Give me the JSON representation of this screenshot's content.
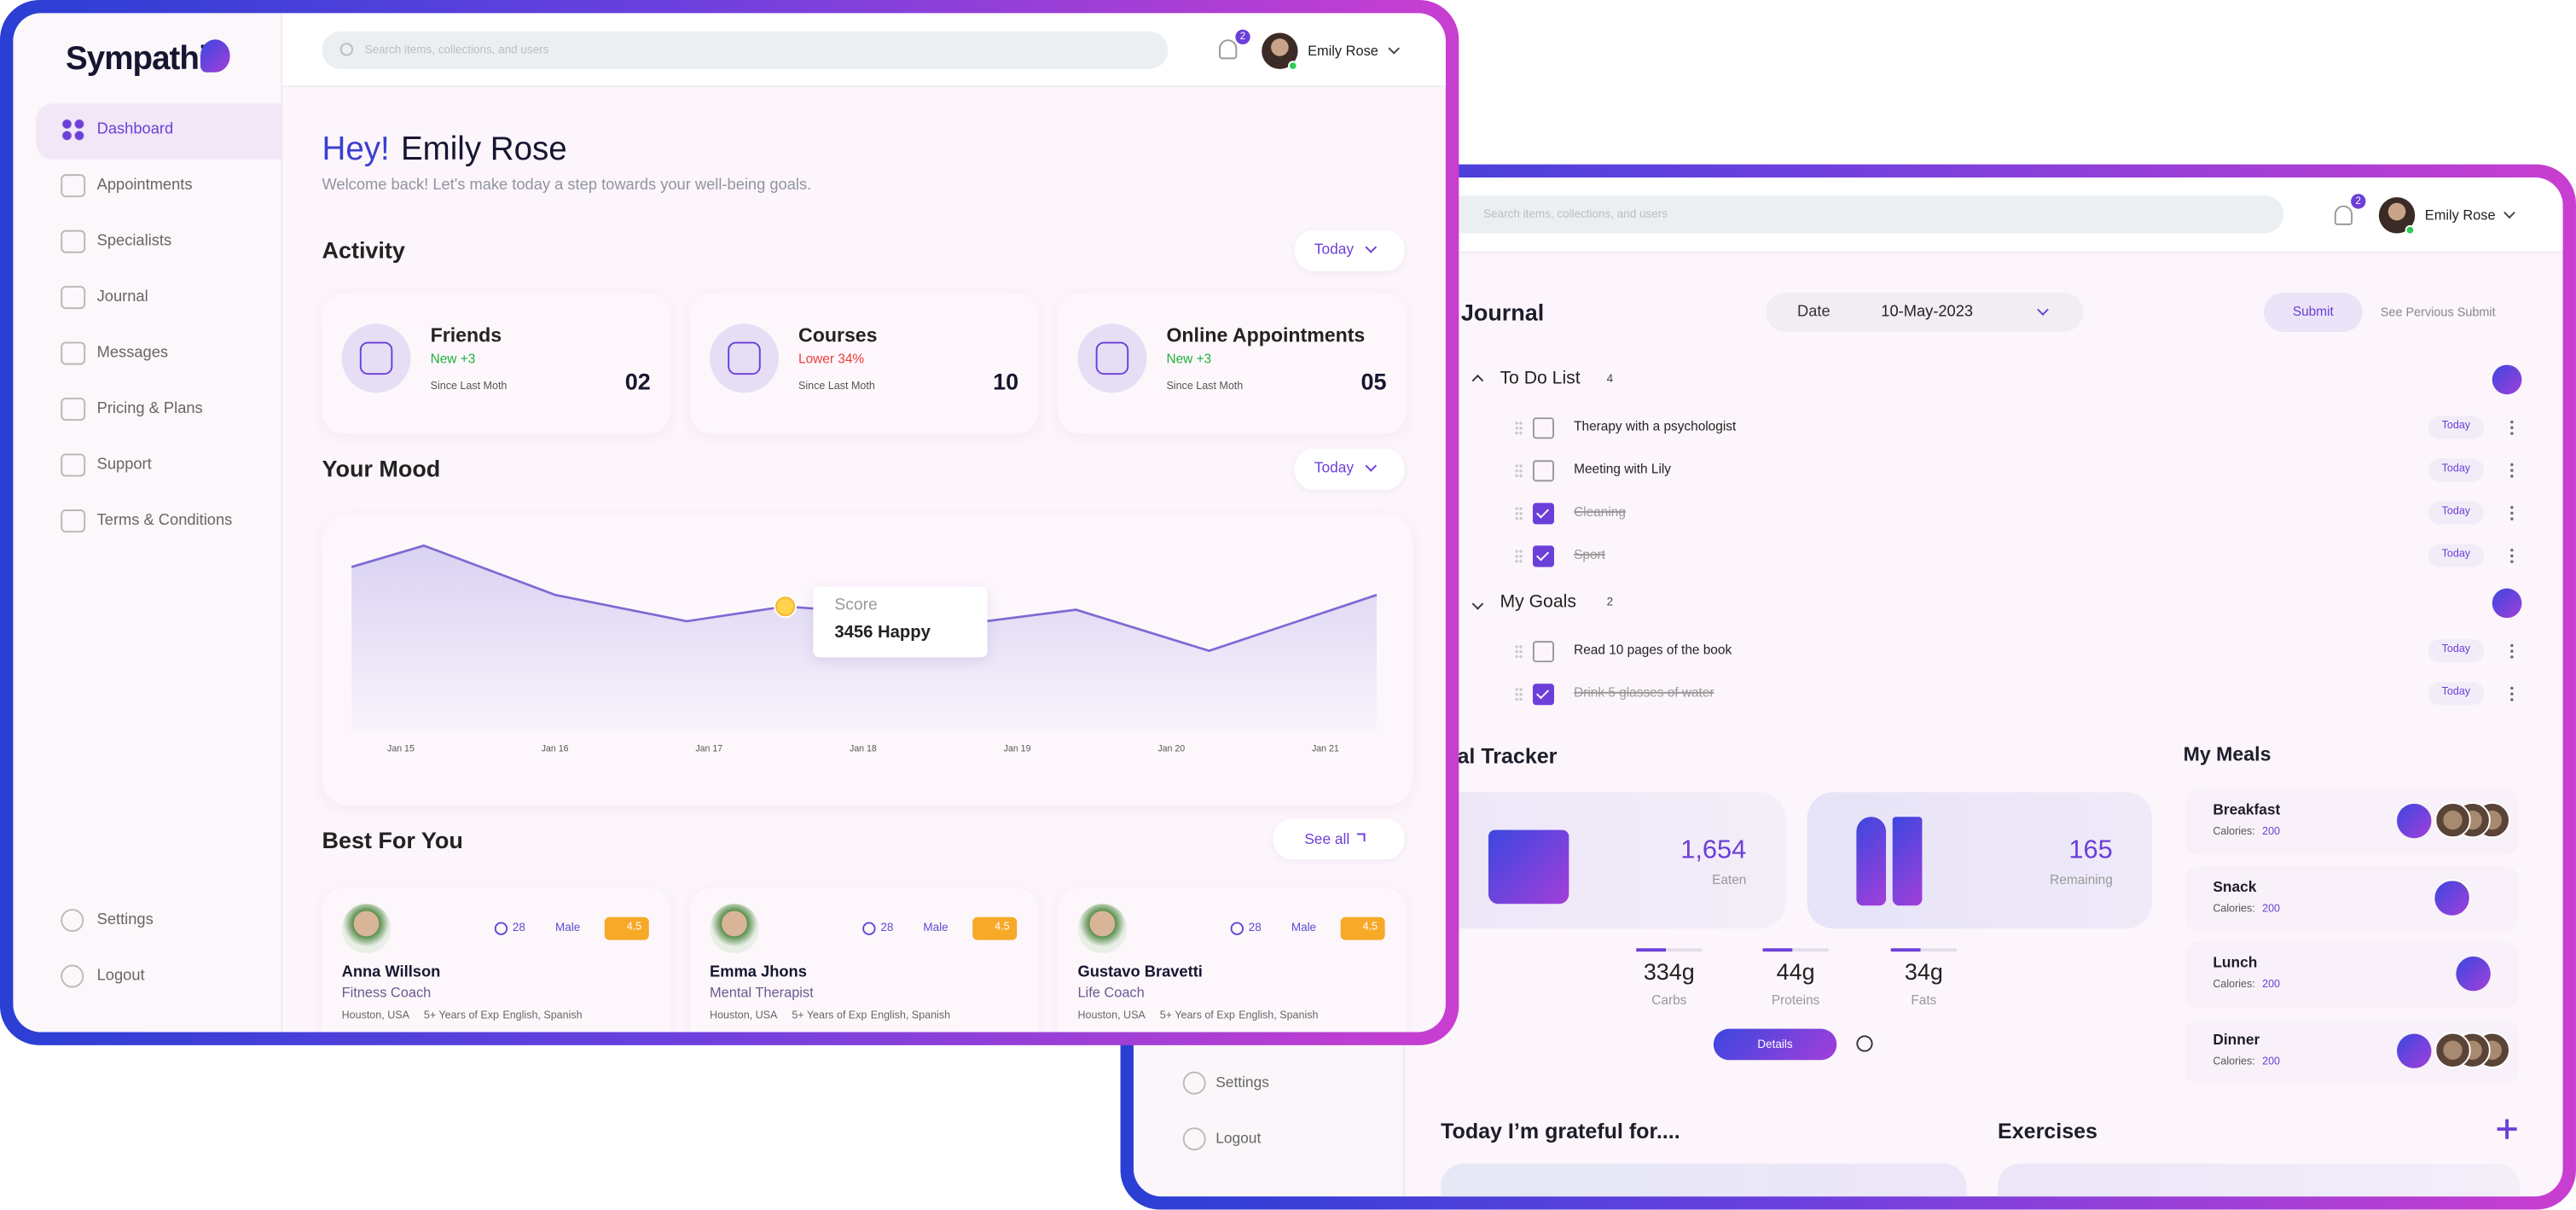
{
  "dashboard": {
    "logo": "Sympathi",
    "nav": [
      "Dashboard",
      "Appointments",
      "Specialists",
      "Journal",
      "Messages",
      "Pricing & Plans",
      "Support",
      "Terms & Conditions"
    ],
    "nav_bottom": [
      "Settings",
      "Logout"
    ],
    "search_placeholder": "Search items, collections, and users",
    "notification_count": "2",
    "user_name": "Emily Rose",
    "greeting": "Hey!",
    "greeting_name": "Emily Rose",
    "welcome": "Welcome back! Let's make today a step towards your well-being goals.",
    "activity": {
      "title": "Activity",
      "filter": "Today",
      "cards": [
        {
          "title": "Friends",
          "change": "New +3",
          "change_color": "#1fae3c",
          "since": "Since Last Moth",
          "count": "02"
        },
        {
          "title": "Courses",
          "change": "Lower 34%",
          "change_color": "#ef3b3b",
          "since": "Since Last Moth",
          "count": "10"
        },
        {
          "title": "Online Appointments",
          "change": "New +3",
          "change_color": "#1fae3c",
          "since": "Since Last Moth",
          "count": "05"
        }
      ]
    },
    "mood": {
      "title": "Your Mood",
      "filter": "Today",
      "tooltip_label": "Score",
      "tooltip_value": "3456 Happy",
      "x_labels": [
        "Jan 15",
        "Jan 16",
        "Jan 17",
        "Jan 18",
        "Jan 19",
        "Jan 20",
        "Jan 21"
      ]
    },
    "best": {
      "title": "Best For You",
      "see_all": "See all",
      "people": [
        {
          "name": "Anna Willson",
          "role": "Fitness Coach",
          "age": "28",
          "gender": "Male",
          "rating": "4.5",
          "location": "Houston, USA",
          "experience": "5+ Years of Exp",
          "languages": "English, Spanish"
        },
        {
          "name": "Emma Jhons",
          "role": "Mental Therapist",
          "age": "28",
          "gender": "Male",
          "rating": "4.5",
          "location": "Houston, USA",
          "experience": "5+ Years of Exp",
          "languages": "English, Spanish"
        },
        {
          "name": "Gustavo Bravetti",
          "role": "Life Coach",
          "age": "28",
          "gender": "Male",
          "rating": "4.5",
          "location": "Houston, USA",
          "experience": "5+ Years of Exp",
          "languages": "English, Spanish"
        }
      ]
    }
  },
  "journal_app": {
    "search_placeholder": "Search items, collections, and users",
    "notification_count": "2",
    "user_name": "Emily Rose",
    "nav_bottom": [
      "Settings",
      "Logout"
    ],
    "title": "My Journal",
    "date_label": "Date",
    "date": "10-May-2023",
    "submit": "Submit",
    "previous": "See Pervious Submit",
    "todo": {
      "title": "To Do List",
      "count": "4",
      "items": [
        {
          "text": "Therapy with a psychologist",
          "done": false,
          "tag": "Today"
        },
        {
          "text": "Meeting with Lily",
          "done": false,
          "tag": "Today"
        },
        {
          "text": "Cleaning",
          "done": true,
          "tag": "Today"
        },
        {
          "text": "Sport",
          "done": true,
          "tag": "Today"
        }
      ]
    },
    "goals": {
      "title": "My Goals",
      "count": "2",
      "items": [
        {
          "text": "Read 10 pages of the book",
          "done": false,
          "tag": "Today"
        },
        {
          "text": "Drink 5 glasses of water",
          "done": true,
          "tag": "Today"
        }
      ]
    },
    "meal_tracker": {
      "title": "Meal Tracker",
      "eaten": "1,654",
      "eaten_label": "Eaten",
      "remaining": "165",
      "remaining_label": "Remaining",
      "macros": [
        {
          "value": "334g",
          "label": "Carbs"
        },
        {
          "value": "44g",
          "label": "Proteins"
        },
        {
          "value": "34g",
          "label": "Fats"
        }
      ],
      "details": "Details"
    },
    "my_meals": {
      "title": "My Meals",
      "calories_label": "Calories:",
      "meals": [
        {
          "name": "Breakfast",
          "calories": "200"
        },
        {
          "name": "Snack",
          "calories": "200"
        },
        {
          "name": "Lunch",
          "calories": "200"
        },
        {
          "name": "Dinner",
          "calories": "200"
        }
      ]
    },
    "grateful": "Today I’m grateful for....",
    "exercises": "Exercises"
  }
}
